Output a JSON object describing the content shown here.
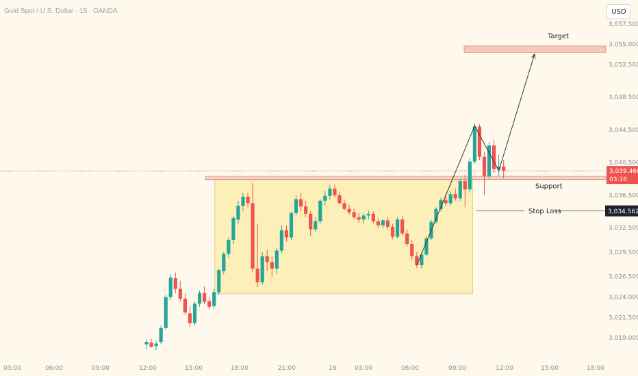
{
  "header": {
    "title": "Gold Spot / U.S. Dollar · 15 · OANDA"
  },
  "currency_button": {
    "label": "USD"
  },
  "colors": {
    "up": "#26a69a",
    "down": "#ef5350",
    "zone_fill": "#fdefb8",
    "zone_border": "#d9cc8c",
    "band": "#f2b8a8"
  },
  "chart_data": {
    "type": "candlestick",
    "title": "Gold Spot / U.S. Dollar · 15 · OANDA",
    "xlabel": "",
    "ylabel": "",
    "x_ticks": [
      "03:00",
      "06:00",
      "09:00",
      "12:00",
      "15:00",
      "18:00",
      "21:00",
      "19",
      "03:00",
      "06:00",
      "09:00",
      "12:00",
      "15:00",
      "18:00"
    ],
    "y_ticks": [
      "3,057.500",
      "3,055.000",
      "3,052.500",
      "3,048.500",
      "3,044.500",
      "3,040.500",
      "3,036.500",
      "3,032.500",
      "3,029.500",
      "3,026.500",
      "3,024.000",
      "3,021.500",
      "3,019.000"
    ],
    "ylim": [
      3017.5,
      3059.5
    ],
    "candles": [
      [
        3018.2,
        3018.8,
        3017.6,
        3018.5
      ],
      [
        3018.4,
        3018.9,
        3017.8,
        3017.9
      ],
      [
        3018.0,
        3018.6,
        3017.5,
        3018.3
      ],
      [
        3018.5,
        3020.5,
        3018.2,
        3020.2
      ],
      [
        3020.2,
        3024.3,
        3020.0,
        3024.0
      ],
      [
        3024.0,
        3026.8,
        3023.6,
        3026.4
      ],
      [
        3026.3,
        3027.0,
        3024.5,
        3025.0
      ],
      [
        3025.0,
        3026.0,
        3023.5,
        3023.8
      ],
      [
        3023.8,
        3024.5,
        3021.8,
        3022.1
      ],
      [
        3022.0,
        3022.9,
        3020.3,
        3020.8
      ],
      [
        3020.8,
        3023.5,
        3020.5,
        3023.2
      ],
      [
        3023.2,
        3024.8,
        3022.8,
        3024.5
      ],
      [
        3024.5,
        3025.3,
        3023.1,
        3023.4
      ],
      [
        3023.5,
        3024.0,
        3022.5,
        3022.8
      ],
      [
        3022.9,
        3025.0,
        3022.6,
        3024.6
      ],
      [
        3024.6,
        3027.5,
        3024.3,
        3027.3
      ],
      [
        3027.2,
        3029.5,
        3026.8,
        3029.3
      ],
      [
        3029.3,
        3031.3,
        3028.8,
        3031.0
      ],
      [
        3031.0,
        3034.0,
        3030.5,
        3033.7
      ],
      [
        3033.5,
        3035.8,
        3033.0,
        3035.2
      ],
      [
        3035.2,
        3036.8,
        3034.5,
        3036.3
      ],
      [
        3036.3,
        3036.8,
        3035.0,
        3035.5
      ],
      [
        3035.5,
        3038.0,
        3027.0,
        3027.5
      ],
      [
        3027.5,
        3033.0,
        3025.2,
        3025.8
      ],
      [
        3025.8,
        3029.5,
        3025.5,
        3029.0
      ],
      [
        3029.0,
        3029.8,
        3027.2,
        3028.3
      ],
      [
        3028.3,
        3029.0,
        3026.5,
        3027.5
      ],
      [
        3027.5,
        3030.0,
        3026.8,
        3029.7
      ],
      [
        3029.7,
        3032.8,
        3029.4,
        3032.2
      ],
      [
        3032.2,
        3032.8,
        3030.8,
        3031.3
      ],
      [
        3031.3,
        3034.5,
        3031.0,
        3034.3
      ],
      [
        3034.3,
        3036.5,
        3034.0,
        3036.0
      ],
      [
        3036.0,
        3036.8,
        3034.5,
        3035.1
      ],
      [
        3035.1,
        3035.8,
        3033.8,
        3034.2
      ],
      [
        3034.2,
        3034.6,
        3031.5,
        3032.3
      ],
      [
        3032.3,
        3033.8,
        3032.0,
        3033.3
      ],
      [
        3033.3,
        3036.0,
        3033.0,
        3035.8
      ],
      [
        3035.8,
        3037.0,
        3035.2,
        3036.4
      ],
      [
        3036.4,
        3037.8,
        3036.0,
        3037.3
      ],
      [
        3037.3,
        3037.8,
        3036.2,
        3036.5
      ],
      [
        3036.5,
        3036.9,
        3035.3,
        3035.5
      ],
      [
        3035.5,
        3035.9,
        3034.6,
        3034.8
      ],
      [
        3034.8,
        3035.3,
        3034.1,
        3034.4
      ],
      [
        3034.4,
        3034.8,
        3033.5,
        3033.8
      ],
      [
        3033.8,
        3034.3,
        3033.1,
        3033.5
      ],
      [
        3033.5,
        3034.3,
        3033.0,
        3034.0
      ],
      [
        3034.0,
        3034.6,
        3033.5,
        3034.2
      ],
      [
        3034.2,
        3034.5,
        3033.0,
        3033.3
      ],
      [
        3033.3,
        3033.7,
        3032.5,
        3032.8
      ],
      [
        3032.8,
        3033.6,
        3032.4,
        3033.4
      ],
      [
        3033.4,
        3033.8,
        3032.3,
        3032.6
      ],
      [
        3032.6,
        3033.0,
        3031.1,
        3031.4
      ],
      [
        3031.4,
        3033.8,
        3031.2,
        3033.5
      ],
      [
        3033.5,
        3033.9,
        3031.5,
        3031.8
      ],
      [
        3031.8,
        3032.3,
        3030.2,
        3030.5
      ],
      [
        3030.5,
        3031.0,
        3028.5,
        3029.0
      ],
      [
        3029.0,
        3029.5,
        3027.6,
        3027.9
      ],
      [
        3027.9,
        3029.5,
        3027.5,
        3029.2
      ],
      [
        3029.2,
        3031.5,
        3029.0,
        3031.2
      ],
      [
        3031.2,
        3033.5,
        3031.0,
        3033.2
      ],
      [
        3033.2,
        3035.0,
        3033.0,
        3034.8
      ],
      [
        3034.8,
        3036.2,
        3034.5,
        3035.9
      ],
      [
        3035.9,
        3036.7,
        3035.2,
        3035.5
      ],
      [
        3035.5,
        3037.0,
        3035.2,
        3036.6
      ],
      [
        3036.6,
        3037.3,
        3035.8,
        3036.1
      ],
      [
        3036.1,
        3038.5,
        3035.8,
        3038.2
      ],
      [
        3038.2,
        3039.0,
        3035.0,
        3037.2
      ],
      [
        3037.2,
        3041.0,
        3036.8,
        3040.6
      ],
      [
        3040.6,
        3045.3,
        3040.3,
        3044.9
      ],
      [
        3044.9,
        3045.2,
        3040.8,
        3041.2
      ],
      [
        3041.2,
        3041.8,
        3036.5,
        3038.8
      ],
      [
        3038.8,
        3043.0,
        3038.5,
        3042.6
      ],
      [
        3042.6,
        3043.3,
        3039.2,
        3039.7
      ],
      [
        3039.7,
        3041.5,
        3038.8,
        3040.0
      ],
      [
        3040.0,
        3040.8,
        3038.5,
        3039.5
      ]
    ],
    "annotations": {
      "target_label": "Target",
      "support_label": "Support",
      "stop_loss_label": "Stop Loss",
      "target_band": [
        3054.0,
        3054.8
      ],
      "support_band": [
        3038.4,
        3038.8
      ],
      "stop_loss": 3034.562,
      "consolidation_zone": {
        "from_candle": 15,
        "to_candle": 67,
        "low": 3024.4,
        "high": 3038.4
      },
      "triangle": [
        [
          56,
          3027.9
        ],
        [
          68,
          3045.0
        ],
        [
          73,
          3039.5
        ]
      ],
      "projection": {
        "from": [
          73,
          3039.5
        ],
        "to": [
          79,
          3053.8
        ]
      }
    },
    "price_tag": {
      "value": "3,039.460",
      "countdown": "03:16",
      "price": 3039.46
    },
    "stop_tag": {
      "value": "3,034.562",
      "price": 3034.562
    }
  }
}
